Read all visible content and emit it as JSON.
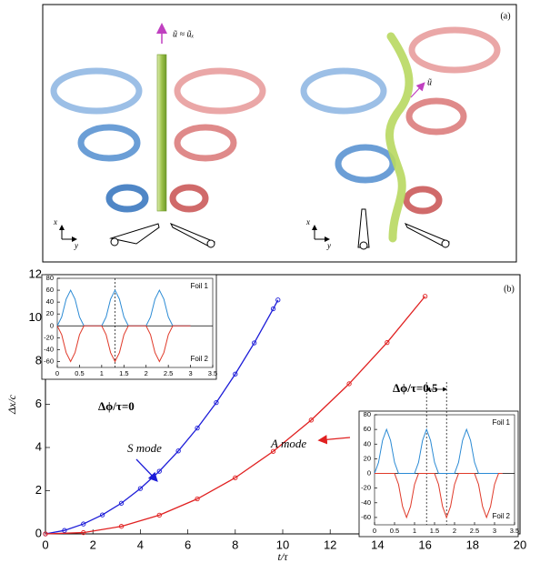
{
  "panel_a": {
    "label": "(a)",
    "annotations": [
      "ũ ≈ ũₓ",
      "ũ"
    ],
    "axes": [
      "x",
      "y"
    ]
  },
  "chart_data": [
    {
      "type": "line",
      "panel_label": "(b)",
      "xlabel": "t/τ",
      "ylabel": "Δx/c",
      "xlim": [
        0,
        20
      ],
      "ylim": [
        0,
        12
      ],
      "xticks": [
        0,
        2,
        4,
        6,
        8,
        10,
        12,
        14,
        16,
        18,
        20
      ],
      "yticks": [
        0,
        2,
        4,
        6,
        8,
        10,
        12
      ],
      "annotations": [
        "S mode",
        "A mode",
        "Δϕ/τ=0",
        "Δϕ/τ=0.5"
      ],
      "series": [
        {
          "color": "#1c1cd8",
          "marker": "circle",
          "x": [
            0,
            0.8,
            1.6,
            2.4,
            3.2,
            4.0,
            4.8,
            5.6,
            6.4,
            7.2,
            8.0,
            8.8,
            9.6,
            9.8
          ],
          "values": [
            0,
            0.16,
            0.46,
            0.88,
            1.42,
            2.1,
            2.9,
            3.84,
            4.9,
            6.08,
            7.4,
            8.84,
            10.42,
            10.83
          ]
        },
        {
          "color": "#e02020",
          "marker": "circle",
          "x": [
            0,
            1.6,
            3.2,
            4.8,
            6.4,
            8.0,
            9.6,
            11.2,
            12.8,
            14.4,
            16
          ],
          "values": [
            0,
            0.06,
            0.35,
            0.87,
            1.62,
            2.6,
            3.82,
            5.27,
            6.95,
            8.86,
            11.0
          ]
        }
      ]
    },
    {
      "type": "line",
      "xlim": [
        0,
        3.5
      ],
      "ylim": [
        -70,
        80
      ],
      "xticks": [
        0,
        0.5,
        1,
        1.5,
        2,
        2.5,
        3,
        3.5
      ],
      "yticks": [
        -60,
        -40,
        -20,
        0,
        20,
        40,
        60,
        80
      ],
      "vlines": [
        1.3
      ],
      "x": [
        0,
        0.1,
        0.2,
        0.3,
        0.4,
        0.5,
        0.6,
        0.7,
        0.8,
        0.9,
        1,
        1.1,
        1.2,
        1.3,
        1.4,
        1.5,
        1.6,
        1.7,
        1.8,
        1.9,
        2,
        2.1,
        2.2,
        2.3,
        2.4,
        2.5,
        2.6,
        2.7,
        2.8,
        2.9,
        3
      ],
      "series": [
        {
          "name": "Foil 1",
          "color": "#2a8ad4",
          "values": [
            0,
            15,
            45,
            60,
            45,
            15,
            0,
            0,
            0,
            0,
            0,
            15,
            45,
            60,
            45,
            15,
            0,
            0,
            0,
            0,
            0,
            15,
            45,
            60,
            45,
            15,
            0,
            0,
            0,
            0,
            0
          ]
        },
        {
          "name": "Foil 2",
          "color": "#e03a2a",
          "values": [
            0,
            -15,
            -45,
            -60,
            -45,
            -15,
            0,
            0,
            0,
            0,
            0,
            -15,
            -45,
            -60,
            -45,
            -15,
            0,
            0,
            0,
            0,
            0,
            -15,
            -45,
            -60,
            -45,
            -15,
            0,
            0,
            0,
            0,
            0
          ]
        }
      ]
    },
    {
      "type": "line",
      "xlim": [
        0,
        3.5
      ],
      "ylim": [
        -70,
        80
      ],
      "xticks": [
        0,
        0.5,
        1,
        1.5,
        2,
        2.5,
        3,
        3.5
      ],
      "yticks": [
        -60,
        -40,
        -20,
        0,
        20,
        40,
        60,
        80
      ],
      "vlines": [
        1.3,
        1.8
      ],
      "x": [
        0,
        0.1,
        0.2,
        0.3,
        0.4,
        0.5,
        0.6,
        0.7,
        0.8,
        0.9,
        1,
        1.1,
        1.2,
        1.3,
        1.4,
        1.5,
        1.6,
        1.7,
        1.8,
        1.9,
        2,
        2.1,
        2.2,
        2.3,
        2.4,
        2.5,
        2.6,
        2.7,
        2.8,
        2.9,
        3,
        3.1,
        3.2
      ],
      "series": [
        {
          "name": "Foil 1",
          "color": "#2a8ad4",
          "values": [
            0,
            15,
            45,
            60,
            45,
            15,
            0,
            0,
            0,
            0,
            0,
            15,
            45,
            60,
            45,
            15,
            0,
            0,
            0,
            0,
            0,
            15,
            45,
            60,
            45,
            15,
            0,
            0,
            0,
            0,
            0,
            0,
            0
          ]
        },
        {
          "name": "Foil 2",
          "color": "#e03a2a",
          "values": [
            0,
            0,
            0,
            0,
            0,
            0,
            -15,
            -45,
            -60,
            -45,
            -15,
            0,
            0,
            0,
            0,
            0,
            -15,
            -45,
            -60,
            -45,
            -15,
            0,
            0,
            0,
            0,
            0,
            -15,
            -45,
            -60,
            -45,
            -15,
            0,
            0
          ]
        }
      ]
    }
  ]
}
